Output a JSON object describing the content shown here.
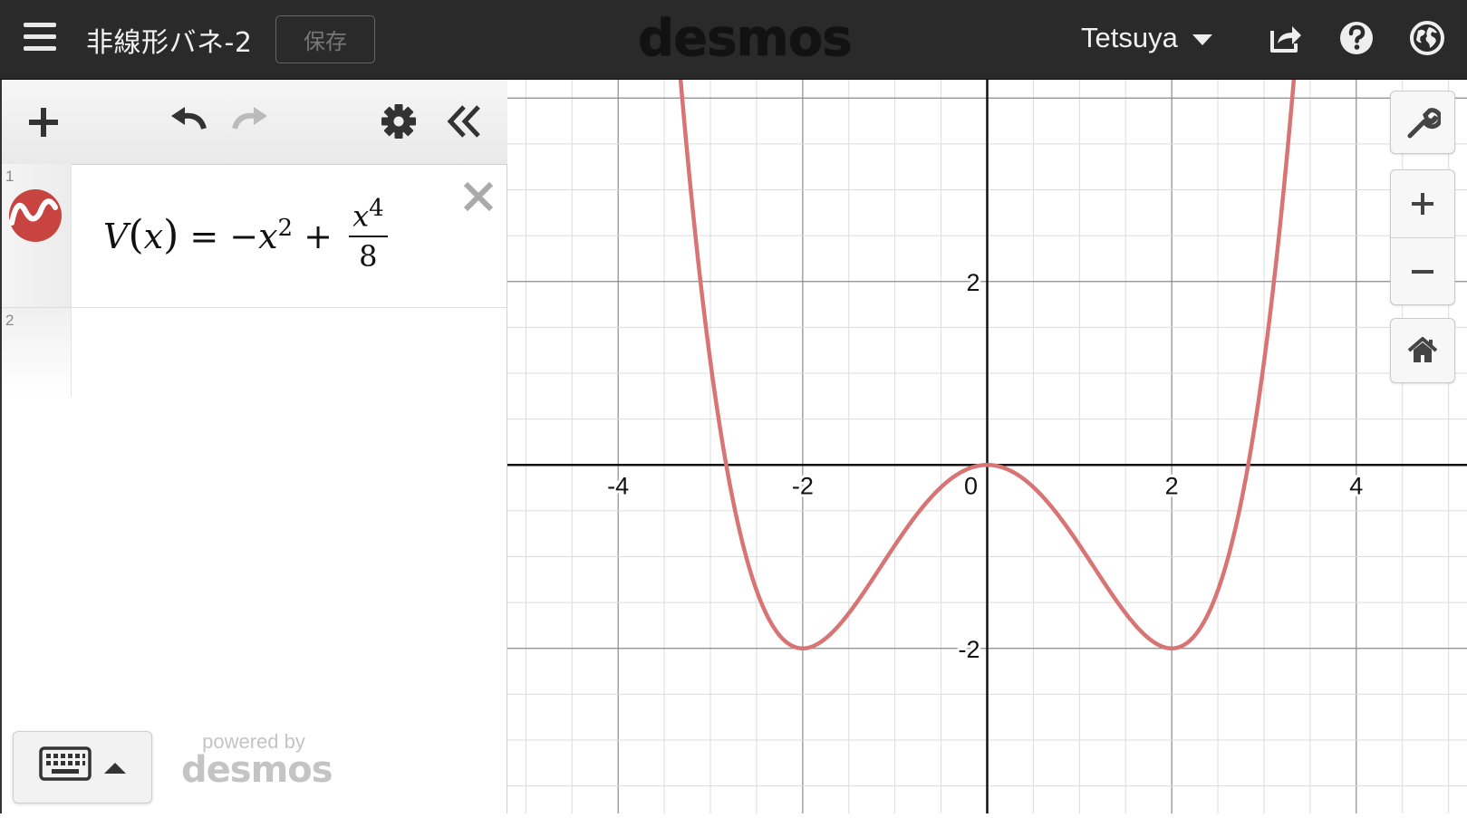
{
  "header": {
    "title": "非線形バネ-2",
    "save_label": "保存",
    "brand": "desmos",
    "user": "Tetsuya"
  },
  "expressions": {
    "rows": [
      {
        "index": "1",
        "color": "#c74440",
        "latex": "V(x) = -x^2 + x^4/8",
        "lhs": "V",
        "arg": "x",
        "term1_var": "x",
        "term1_exp": "2",
        "frac_num_var": "x",
        "frac_num_exp": "4",
        "frac_den": "8"
      },
      {
        "index": "2"
      }
    ]
  },
  "footer": {
    "powered_by": "powered by",
    "powered_brand": "desmos"
  },
  "graph": {
    "curve_color": "#d87574",
    "x_range": [
      -5.2,
      5.2
    ],
    "y_range": [
      -3.8,
      4.2
    ],
    "x_ticks": [
      "-4",
      "-2",
      "0",
      "2",
      "4"
    ],
    "y_ticks": [
      "2",
      "-2"
    ]
  },
  "chart_data": {
    "type": "line",
    "title": "",
    "xlabel": "",
    "ylabel": "",
    "xlim": [
      -5.2,
      5.2
    ],
    "ylim": [
      -3.8,
      4.2
    ],
    "grid": true,
    "x_tick_labels": [
      "-4",
      "-2",
      "0",
      "2",
      "4"
    ],
    "y_tick_labels": [
      "-2",
      "2"
    ],
    "series": [
      {
        "x": [
          -3.2,
          -3.0,
          -2.828,
          -2.5,
          -2.0,
          -1.5,
          -1.0,
          -0.5,
          0.0,
          0.5,
          1.0,
          1.5,
          2.0,
          2.5,
          2.828,
          3.0,
          3.2
        ],
        "y": [
          3.87,
          1.13,
          0.0,
          -1.37,
          -2.0,
          -1.62,
          -0.875,
          -0.242,
          0.0,
          -0.242,
          -0.875,
          -1.62,
          -2.0,
          -1.37,
          0.0,
          1.13,
          3.87
        ]
      }
    ]
  }
}
